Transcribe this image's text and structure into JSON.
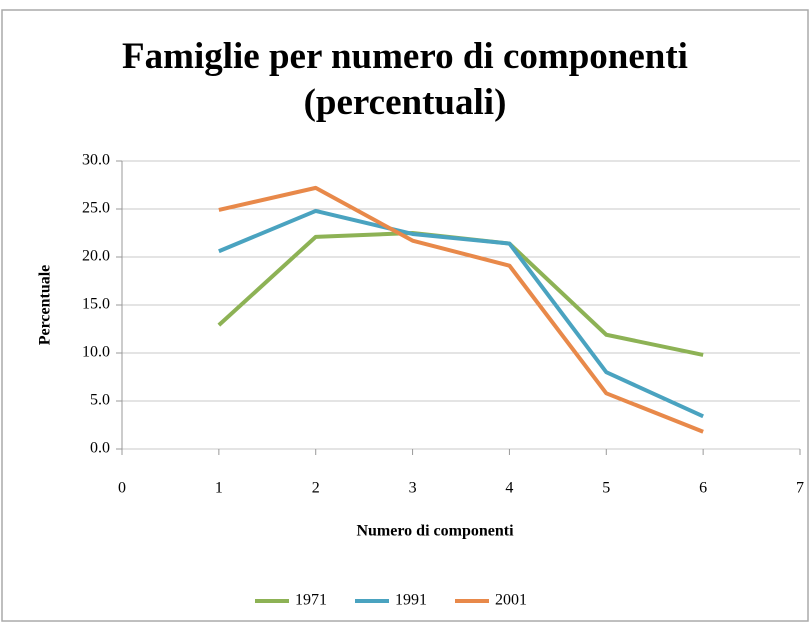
{
  "chart_data": {
    "type": "line",
    "title": "Famiglie per numero di componenti (percentuali)",
    "x_label": "Numero di componenti",
    "y_label": "Percentuale",
    "x": [
      1,
      2,
      3,
      4,
      5,
      6
    ],
    "series": [
      {
        "name": "1971",
        "color": "#8db255",
        "values": [
          12.9,
          22.1,
          22.5,
          21.4,
          11.9,
          9.8
        ]
      },
      {
        "name": "1991",
        "color": "#4aa3c0",
        "values": [
          20.6,
          24.8,
          22.4,
          21.4,
          8.0,
          3.4
        ]
      },
      {
        "name": "2001",
        "color": "#e8894a",
        "values": [
          24.9,
          27.2,
          21.7,
          19.1,
          5.8,
          1.8
        ]
      }
    ],
    "xlim": [
      0,
      7
    ],
    "xticks": [
      0,
      1,
      2,
      3,
      4,
      5,
      6,
      7
    ],
    "ylim": [
      0,
      30
    ],
    "yticks": [
      {
        "value": 0,
        "label": "0.0"
      },
      {
        "value": 5,
        "label": "5.0"
      },
      {
        "value": 10,
        "label": "10.0"
      },
      {
        "value": 15,
        "label": "15.0"
      },
      {
        "value": 20,
        "label": "20.0"
      },
      {
        "value": 25,
        "label": "25.0"
      },
      {
        "value": 30,
        "label": "30.0"
      }
    ],
    "grid": true,
    "legend": "bottom"
  }
}
